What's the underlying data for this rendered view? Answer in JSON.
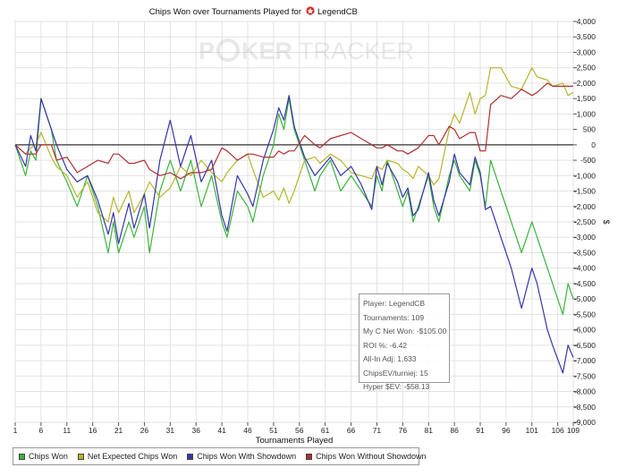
{
  "watermark": {
    "left": "P",
    "middle": "KER",
    "right": "TRACKER"
  },
  "chart_data": {
    "type": "line",
    "title": "Chips Won over Tournaments Played for",
    "player_name": "LegendCB",
    "xlabel": "Tournaments Played",
    "ylabel": "$",
    "xlim": [
      1,
      109
    ],
    "ylim": [
      -9000,
      4000
    ],
    "x_ticks": [
      1,
      6,
      11,
      16,
      21,
      26,
      31,
      36,
      41,
      46,
      51,
      56,
      61,
      66,
      71,
      76,
      81,
      86,
      91,
      96,
      101,
      106,
      109
    ],
    "y_ticks": [
      4000,
      3500,
      3000,
      2500,
      2000,
      1500,
      1000,
      500,
      0,
      -500,
      -1000,
      -1500,
      -2000,
      -2500,
      -3000,
      -3500,
      -4000,
      -4500,
      -5000,
      -5500,
      -6000,
      -6500,
      -7000,
      -7500,
      -8000,
      -8500,
      -9000
    ],
    "y_tick_labels": [
      "4,000",
      "3,500",
      "3,000",
      "2,500",
      "2,000",
      "1,500",
      "1,000",
      "500",
      "0",
      "-500",
      "-1,000",
      "-1,500",
      "-2,000",
      "-2,500",
      "-3,000",
      "-3,500",
      "-4,000",
      "-4,500",
      "-5,000",
      "-5,500",
      "-6,000",
      "-6,500",
      "-7,000",
      "-7,500",
      "-8,000",
      "-8,500",
      "-9,000"
    ],
    "grid": true,
    "legend_position": "bottom-left",
    "series": [
      {
        "name": "Chips Won",
        "color": "#3cb33c",
        "points": [
          [
            1,
            0
          ],
          [
            3,
            -1000
          ],
          [
            4,
            -200
          ],
          [
            5,
            -500
          ],
          [
            6,
            1500
          ],
          [
            8,
            500
          ],
          [
            9,
            -500
          ],
          [
            11,
            -1200
          ],
          [
            13,
            -2000
          ],
          [
            15,
            -1000
          ],
          [
            17,
            -2000
          ],
          [
            19,
            -3500
          ],
          [
            20,
            -2500
          ],
          [
            21,
            -3500
          ],
          [
            23,
            -2500
          ],
          [
            24,
            -3000
          ],
          [
            26,
            -2000
          ],
          [
            27,
            -3500
          ],
          [
            29,
            -1500
          ],
          [
            31,
            -500
          ],
          [
            33,
            -1500
          ],
          [
            35,
            -500
          ],
          [
            37,
            -2000
          ],
          [
            39,
            -1000
          ],
          [
            41,
            -2500
          ],
          [
            42,
            -3000
          ],
          [
            44,
            -1500
          ],
          [
            46,
            -2000
          ],
          [
            47,
            -2500
          ],
          [
            49,
            -1000
          ],
          [
            51,
            0
          ],
          [
            52,
            1000
          ],
          [
            53,
            500
          ],
          [
            54,
            1500
          ],
          [
            55,
            500
          ],
          [
            57,
            -500
          ],
          [
            59,
            -1500
          ],
          [
            60,
            -1000
          ],
          [
            62,
            -500
          ],
          [
            64,
            -1500
          ],
          [
            66,
            -1000
          ],
          [
            68,
            -1500
          ],
          [
            70,
            -2000
          ],
          [
            71,
            -1000
          ],
          [
            72,
            -1500
          ],
          [
            73,
            -500
          ],
          [
            75,
            -1500
          ],
          [
            76,
            -2000
          ],
          [
            77,
            -1500
          ],
          [
            78,
            -2500
          ],
          [
            79,
            -2000
          ],
          [
            81,
            -1000
          ],
          [
            82,
            -2000
          ],
          [
            83,
            -2500
          ],
          [
            85,
            -1000
          ],
          [
            86,
            -500
          ],
          [
            87,
            -1000
          ],
          [
            89,
            -1500
          ],
          [
            90,
            -500
          ],
          [
            91,
            -1000
          ],
          [
            92,
            -2000
          ],
          [
            93,
            -500
          ],
          [
            95,
            -1500
          ],
          [
            97,
            -2500
          ],
          [
            99,
            -3500
          ],
          [
            101,
            -2500
          ],
          [
            102,
            -3000
          ],
          [
            104,
            -4000
          ],
          [
            105,
            -4500
          ],
          [
            107,
            -5500
          ],
          [
            108,
            -4500
          ],
          [
            109,
            -5000
          ]
        ]
      },
      {
        "name": "Net Expected Chips Won",
        "color": "#b5b52e",
        "points": [
          [
            1,
            0
          ],
          [
            3,
            -300
          ],
          [
            4,
            -100
          ],
          [
            5,
            0
          ],
          [
            6,
            400
          ],
          [
            8,
            -400
          ],
          [
            9,
            -700
          ],
          [
            11,
            -1000
          ],
          [
            13,
            -1700
          ],
          [
            15,
            -1200
          ],
          [
            17,
            -2200
          ],
          [
            19,
            -2500
          ],
          [
            20,
            -1700
          ],
          [
            21,
            -2200
          ],
          [
            23,
            -1500
          ],
          [
            24,
            -2200
          ],
          [
            26,
            -1600
          ],
          [
            27,
            -1200
          ],
          [
            29,
            -1700
          ],
          [
            31,
            -1400
          ],
          [
            33,
            -700
          ],
          [
            35,
            -1000
          ],
          [
            37,
            -500
          ],
          [
            39,
            -900
          ],
          [
            41,
            -1200
          ],
          [
            42,
            -900
          ],
          [
            44,
            -500
          ],
          [
            46,
            -300
          ],
          [
            47,
            -800
          ],
          [
            49,
            -1700
          ],
          [
            51,
            -1500
          ],
          [
            52,
            -1800
          ],
          [
            53,
            -1400
          ],
          [
            54,
            -1900
          ],
          [
            55,
            -1500
          ],
          [
            57,
            -500
          ],
          [
            59,
            -400
          ],
          [
            60,
            -600
          ],
          [
            62,
            -300
          ],
          [
            64,
            -500
          ],
          [
            66,
            -900
          ],
          [
            68,
            -1000
          ],
          [
            70,
            -1100
          ],
          [
            71,
            -700
          ],
          [
            72,
            -800
          ],
          [
            73,
            -500
          ],
          [
            75,
            -600
          ],
          [
            76,
            -800
          ],
          [
            77,
            -900
          ],
          [
            78,
            -1100
          ],
          [
            79,
            -700
          ],
          [
            81,
            -1000
          ],
          [
            82,
            -1300
          ],
          [
            83,
            -1100
          ],
          [
            85,
            500
          ],
          [
            86,
            1000
          ],
          [
            87,
            700
          ],
          [
            89,
            1700
          ],
          [
            90,
            1000
          ],
          [
            91,
            1500
          ],
          [
            92,
            1600
          ],
          [
            93,
            2500
          ],
          [
            95,
            2500
          ],
          [
            97,
            1900
          ],
          [
            99,
            1800
          ],
          [
            101,
            2500
          ],
          [
            102,
            2200
          ],
          [
            104,
            2100
          ],
          [
            105,
            1900
          ],
          [
            107,
            2000
          ],
          [
            108,
            1600
          ],
          [
            109,
            1700
          ]
        ]
      },
      {
        "name": "Chips Won With Showdown",
        "color": "#3535aa",
        "points": [
          [
            1,
            0
          ],
          [
            3,
            -700
          ],
          [
            4,
            300
          ],
          [
            5,
            -200
          ],
          [
            6,
            1500
          ],
          [
            8,
            500
          ],
          [
            9,
            0
          ],
          [
            11,
            -800
          ],
          [
            13,
            -1200
          ],
          [
            15,
            -1000
          ],
          [
            17,
            -1800
          ],
          [
            19,
            -2900
          ],
          [
            20,
            -2200
          ],
          [
            21,
            -3200
          ],
          [
            23,
            -1900
          ],
          [
            24,
            -2700
          ],
          [
            26,
            -1600
          ],
          [
            27,
            -2700
          ],
          [
            29,
            -500
          ],
          [
            31,
            800
          ],
          [
            33,
            -700
          ],
          [
            35,
            300
          ],
          [
            37,
            -1200
          ],
          [
            39,
            -500
          ],
          [
            41,
            -2300
          ],
          [
            42,
            -2800
          ],
          [
            44,
            -1000
          ],
          [
            46,
            -1600
          ],
          [
            47,
            -2000
          ],
          [
            49,
            -500
          ],
          [
            51,
            500
          ],
          [
            52,
            1200
          ],
          [
            53,
            800
          ],
          [
            54,
            1600
          ],
          [
            55,
            600
          ],
          [
            57,
            -400
          ],
          [
            59,
            -1000
          ],
          [
            60,
            -800
          ],
          [
            62,
            -400
          ],
          [
            64,
            -1000
          ],
          [
            66,
            -700
          ],
          [
            68,
            -1300
          ],
          [
            70,
            -2100
          ],
          [
            71,
            -700
          ],
          [
            72,
            -1300
          ],
          [
            73,
            -600
          ],
          [
            75,
            -1200
          ],
          [
            76,
            -1700
          ],
          [
            77,
            -1400
          ],
          [
            78,
            -2300
          ],
          [
            79,
            -2100
          ],
          [
            81,
            -900
          ],
          [
            82,
            -1800
          ],
          [
            83,
            -2300
          ],
          [
            85,
            -1200
          ],
          [
            86,
            -300
          ],
          [
            87,
            -900
          ],
          [
            89,
            -1300
          ],
          [
            90,
            -400
          ],
          [
            91,
            -900
          ],
          [
            92,
            -2100
          ],
          [
            93,
            -2000
          ],
          [
            95,
            -3000
          ],
          [
            97,
            -4000
          ],
          [
            99,
            -5300
          ],
          [
            101,
            -4000
          ],
          [
            102,
            -4500
          ],
          [
            104,
            -6000
          ],
          [
            105,
            -6500
          ],
          [
            107,
            -7400
          ],
          [
            108,
            -6500
          ],
          [
            109,
            -6900
          ]
        ]
      },
      {
        "name": "Chips Won Without Showdown",
        "color": "#b03030",
        "points": [
          [
            1,
            0
          ],
          [
            3,
            -300
          ],
          [
            4,
            -300
          ],
          [
            5,
            -300
          ],
          [
            6,
            0
          ],
          [
            8,
            0
          ],
          [
            9,
            -500
          ],
          [
            11,
            -400
          ],
          [
            13,
            -900
          ],
          [
            15,
            -700
          ],
          [
            17,
            -500
          ],
          [
            19,
            -600
          ],
          [
            20,
            -300
          ],
          [
            21,
            -300
          ],
          [
            23,
            -600
          ],
          [
            24,
            -600
          ],
          [
            26,
            -500
          ],
          [
            27,
            -800
          ],
          [
            29,
            -1000
          ],
          [
            31,
            -900
          ],
          [
            33,
            -1100
          ],
          [
            35,
            -900
          ],
          [
            37,
            -900
          ],
          [
            39,
            -800
          ],
          [
            41,
            -100
          ],
          [
            42,
            -200
          ],
          [
            44,
            -500
          ],
          [
            46,
            -300
          ],
          [
            47,
            -300
          ],
          [
            49,
            -400
          ],
          [
            51,
            -400
          ],
          [
            52,
            -200
          ],
          [
            53,
            -300
          ],
          [
            54,
            -200
          ],
          [
            55,
            -200
          ],
          [
            57,
            300
          ],
          [
            59,
            0
          ],
          [
            60,
            -100
          ],
          [
            62,
            200
          ],
          [
            64,
            300
          ],
          [
            66,
            400
          ],
          [
            68,
            200
          ],
          [
            70,
            0
          ],
          [
            71,
            -100
          ],
          [
            72,
            -100
          ],
          [
            73,
            0
          ],
          [
            75,
            -200
          ],
          [
            76,
            -200
          ],
          [
            77,
            -300
          ],
          [
            78,
            -200
          ],
          [
            79,
            -100
          ],
          [
            81,
            300
          ],
          [
            82,
            300
          ],
          [
            83,
            0
          ],
          [
            85,
            600
          ],
          [
            86,
            500
          ],
          [
            87,
            200
          ],
          [
            89,
            400
          ],
          [
            90,
            400
          ],
          [
            91,
            -200
          ],
          [
            92,
            -200
          ],
          [
            93,
            1300
          ],
          [
            95,
            1600
          ],
          [
            97,
            1500
          ],
          [
            99,
            1800
          ],
          [
            101,
            1600
          ],
          [
            102,
            1700
          ],
          [
            104,
            2000
          ],
          [
            105,
            1900
          ],
          [
            107,
            1900
          ],
          [
            108,
            1900
          ],
          [
            109,
            1900
          ]
        ]
      }
    ],
    "info_box": [
      "Player: LegendCB",
      "Tournaments: 109",
      "My C Net Won: -$105.00",
      "ROI %: -6.42",
      "All-In Adj: 1,633",
      "ChipsEV/turniej: 15",
      "Hyper $EV: -$58.13"
    ]
  }
}
